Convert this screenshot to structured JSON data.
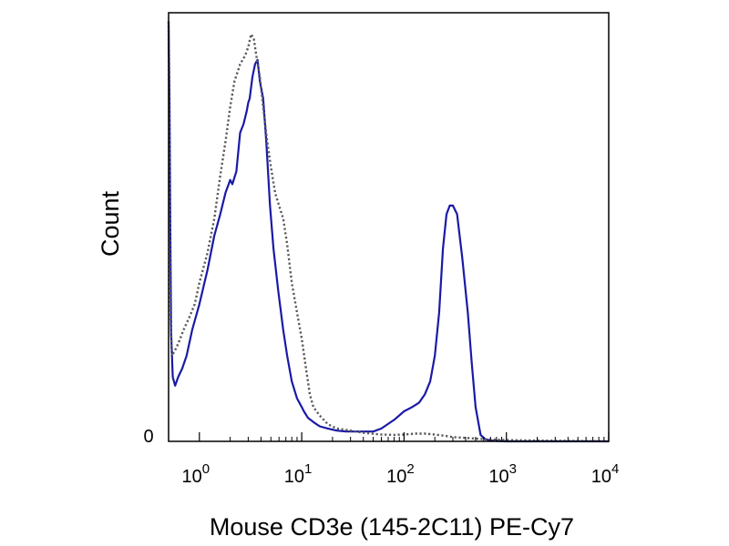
{
  "chart_data": {
    "type": "line",
    "title": "",
    "xlabel": "Mouse CD3e (145-2C11) PE-Cy7",
    "ylabel": "Count",
    "x_scale": "log",
    "xlim": [
      0.5,
      10000
    ],
    "ylim": [
      0,
      100
    ],
    "grid": false,
    "legend": "none",
    "x_ticks": [
      {
        "base": "10",
        "exp": "0",
        "value": 1
      },
      {
        "base": "10",
        "exp": "1",
        "value": 10
      },
      {
        "base": "10",
        "exp": "2",
        "value": 100
      },
      {
        "base": "10",
        "exp": "3",
        "value": 1000
      },
      {
        "base": "10",
        "exp": "4",
        "value": 10000
      }
    ],
    "y_ticks": [
      {
        "label": "0",
        "value": 0
      }
    ],
    "series": [
      {
        "style": "solid",
        "color": "#1a1aa6",
        "x": [
          0.5,
          0.51,
          0.52,
          0.53,
          0.55,
          0.58,
          0.62,
          0.68,
          0.75,
          0.85,
          1.0,
          1.2,
          1.4,
          1.6,
          1.8,
          2.0,
          2.1,
          2.3,
          2.5,
          2.7,
          2.9,
          3.0,
          3.1,
          3.3,
          3.5,
          3.7,
          3.9,
          4.2,
          4.5,
          4.9,
          5.3,
          5.9,
          6.6,
          7.2,
          8.0,
          9.0,
          10.0,
          10.5,
          11.5,
          13,
          15,
          18,
          22,
          27,
          32,
          40,
          50,
          60,
          80,
          100,
          120,
          140,
          160,
          180,
          200,
          220,
          240,
          260,
          280,
          300,
          330,
          370,
          420,
          460,
          500,
          560,
          620,
          700,
          800,
          1000,
          2000,
          5000,
          10000
        ],
        "y": [
          98.0,
          80.0,
          50.0,
          25.0,
          15.0,
          13.0,
          15.0,
          17.0,
          20.0,
          26.0,
          32.0,
          40.0,
          48.0,
          53.0,
          58.0,
          61.0,
          60.0,
          63.0,
          72.0,
          74.0,
          77.0,
          79.0,
          80.0,
          85.0,
          88.0,
          89.0,
          84.0,
          80.0,
          70.0,
          55.0,
          45.0,
          35.0,
          26.0,
          20.0,
          14.0,
          10.0,
          8.0,
          7.0,
          5.5,
          4.5,
          3.5,
          3.0,
          2.5,
          2.3,
          2.3,
          2.3,
          2.3,
          3.0,
          5.0,
          7.0,
          8.0,
          9.0,
          11.0,
          14.0,
          20.0,
          30.0,
          45.0,
          53.0,
          55.0,
          55.0,
          53.0,
          43.0,
          30.0,
          18.0,
          8.0,
          1.5,
          0.5,
          0.2,
          0.1,
          0,
          0,
          0,
          0
        ]
      },
      {
        "style": "dotted",
        "color": "#5a5a5a",
        "x": [
          0.5,
          0.51,
          0.52,
          0.54,
          0.57,
          0.6,
          0.65,
          0.7,
          0.8,
          0.9,
          1.0,
          1.2,
          1.4,
          1.6,
          1.8,
          2.0,
          2.2,
          2.5,
          2.8,
          3.0,
          3.2,
          3.4,
          3.6,
          3.9,
          4.2,
          4.6,
          5.0,
          5.5,
          6.0,
          6.6,
          7.2,
          8.0,
          9.0,
          10.0,
          11.0,
          12.0,
          13.0,
          15.0,
          18.0,
          22.0,
          30.0,
          40.0,
          60.0,
          80.0,
          100,
          130,
          160,
          200,
          250,
          300,
          400,
          600,
          1000,
          2000,
          5000,
          10000
        ],
        "y": [
          98.0,
          60.0,
          30.0,
          20.0,
          21.0,
          22.0,
          24.0,
          26.0,
          29.0,
          32.0,
          37.0,
          44.0,
          52.0,
          62.0,
          70.0,
          78.0,
          84.0,
          88.0,
          90.0,
          92.0,
          95.0,
          94.0,
          90.0,
          85.0,
          78.0,
          70.0,
          64.0,
          58.0,
          55.0,
          52.0,
          46.0,
          37.0,
          30.0,
          24.0,
          17.0,
          11.0,
          8.0,
          6.0,
          4.0,
          3.0,
          2.5,
          2.0,
          1.6,
          1.5,
          1.6,
          1.8,
          1.8,
          1.6,
          1.3,
          1.0,
          0.8,
          0.5,
          0.3,
          0.2,
          0.1,
          0
        ]
      }
    ]
  }
}
